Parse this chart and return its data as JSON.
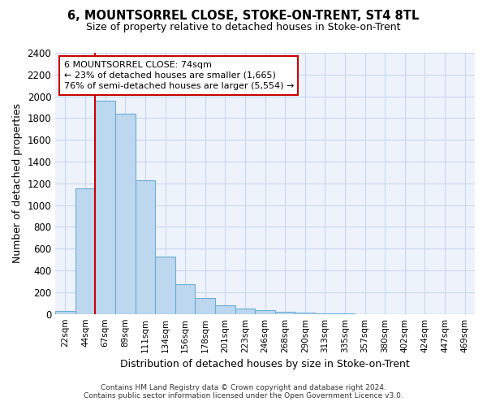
{
  "title": "6, MOUNTSORREL CLOSE, STOKE-ON-TRENT, ST4 8TL",
  "subtitle": "Size of property relative to detached houses in Stoke-on-Trent",
  "xlabel": "Distribution of detached houses by size in Stoke-on-Trent",
  "ylabel": "Number of detached properties",
  "footnote1": "Contains HM Land Registry data © Crown copyright and database right 2024.",
  "footnote2": "Contains public sector information licensed under the Open Government Licence v3.0.",
  "bin_labels": [
    "22sqm",
    "44sqm",
    "67sqm",
    "89sqm",
    "111sqm",
    "134sqm",
    "156sqm",
    "178sqm",
    "201sqm",
    "223sqm",
    "246sqm",
    "268sqm",
    "290sqm",
    "313sqm",
    "335sqm",
    "357sqm",
    "380sqm",
    "402sqm",
    "424sqm",
    "447sqm",
    "469sqm"
  ],
  "bar_values": [
    30,
    1155,
    1960,
    1840,
    1225,
    525,
    270,
    150,
    80,
    50,
    35,
    20,
    10,
    5,
    2,
    1,
    1,
    1,
    0,
    0,
    0
  ],
  "bar_color": "#bdd7ee",
  "bar_edge_color": "#6baed6",
  "grid_color": "#c8d8f0",
  "background_color": "#eef2fb",
  "red_line_index": 2,
  "annotation_text1": "6 MOUNTSORREL CLOSE: 74sqm",
  "annotation_text2": "← 23% of detached houses are smaller (1,665)",
  "annotation_text3": "76% of semi-detached houses are larger (5,554) →",
  "annotation_box_color": "#ffffff",
  "annotation_border_color": "#cc0000",
  "ylim": [
    0,
    2400
  ],
  "yticks": [
    0,
    200,
    400,
    600,
    800,
    1000,
    1200,
    1400,
    1600,
    1800,
    2000,
    2200,
    2400
  ]
}
